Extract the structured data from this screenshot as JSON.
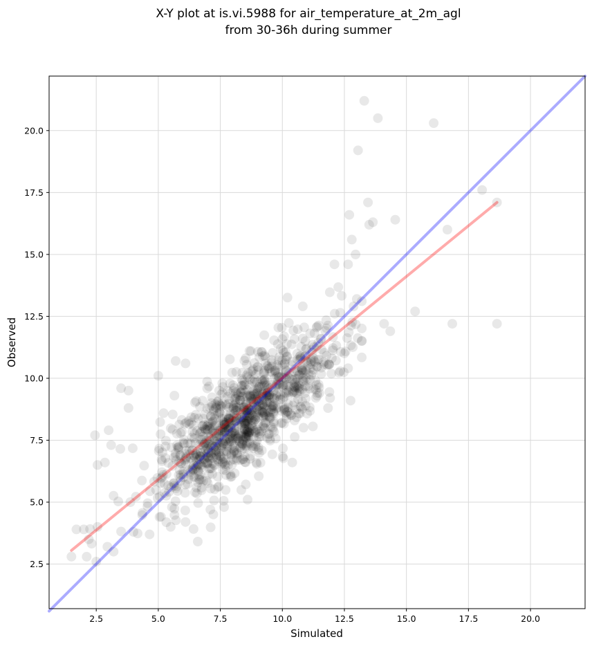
{
  "chart_data": {
    "type": "scatter",
    "title": [
      "X-Y plot at is.vi.5988 for air_temperature_at_2m_agl",
      "from 30-36h during summer"
    ],
    "xlabel": "Simulated",
    "ylabel": "Observed",
    "xlim": [
      0.6,
      22.2
    ],
    "ylim": [
      0.7,
      22.2
    ],
    "x_ticks": [
      2.5,
      5.0,
      7.5,
      10.0,
      12.5,
      15.0,
      17.5,
      20.0
    ],
    "y_ticks": [
      2.5,
      5.0,
      7.5,
      10.0,
      12.5,
      15.0,
      17.5,
      20.0
    ],
    "x_tick_labels": [
      "2.5",
      "5.0",
      "7.5",
      "10.0",
      "12.5",
      "15.0",
      "17.5",
      "20.0"
    ],
    "y_tick_labels": [
      "2.5",
      "5.0",
      "7.5",
      "10.0",
      "12.5",
      "15.0",
      "17.5",
      "20.0"
    ],
    "grid": true,
    "point_color": "#000000",
    "point_alpha": 0.09,
    "cloud": {
      "n_points": 1100,
      "x_center": 8.4,
      "x_spread": 1.9,
      "relationship": "y = 0.76*x + 1.95",
      "y_noise": 1.05
    },
    "series": [
      {
        "values": [
          [
            13.3,
            21.2
          ],
          [
            13.85,
            20.5
          ],
          [
            16.1,
            20.3
          ],
          [
            13.05,
            19.2
          ],
          [
            18.05,
            17.6
          ],
          [
            18.65,
            17.1
          ],
          [
            13.45,
            17.1
          ],
          [
            12.7,
            16.6
          ],
          [
            14.55,
            16.4
          ],
          [
            13.65,
            16.3
          ],
          [
            13.5,
            16.2
          ],
          [
            16.65,
            16.0
          ],
          [
            12.8,
            15.6
          ],
          [
            12.95,
            15.0
          ],
          [
            12.65,
            14.6
          ],
          [
            12.1,
            14.6
          ],
          [
            13.0,
            13.2
          ],
          [
            15.35,
            12.7
          ],
          [
            14.1,
            12.2
          ],
          [
            16.85,
            12.2
          ],
          [
            18.65,
            12.2
          ],
          [
            14.35,
            11.9
          ],
          [
            13.2,
            11.5
          ],
          [
            12.75,
            9.1
          ],
          [
            10.4,
            6.6
          ],
          [
            8.6,
            5.1
          ],
          [
            6.1,
            4.2
          ],
          [
            7.65,
            4.8
          ],
          [
            4.65,
            3.7
          ],
          [
            4.0,
            3.8
          ],
          [
            2.5,
            2.6
          ],
          [
            1.5,
            2.8
          ],
          [
            3.2,
            3.0
          ],
          [
            2.95,
            3.2
          ],
          [
            2.0,
            3.9
          ],
          [
            1.7,
            3.9
          ],
          [
            2.55,
            4.0
          ],
          [
            2.2,
            3.5
          ],
          [
            2.45,
            7.7
          ],
          [
            3.0,
            7.9
          ],
          [
            3.5,
            9.6
          ],
          [
            3.8,
            9.5
          ],
          [
            3.8,
            8.8
          ],
          [
            5.0,
            10.1
          ],
          [
            5.7,
            10.7
          ],
          [
            6.1,
            10.6
          ],
          [
            5.65,
            9.3
          ],
          [
            3.1,
            7.3
          ],
          [
            2.85,
            6.6
          ],
          [
            2.55,
            6.5
          ],
          [
            5.5,
            4.0
          ],
          [
            5.05,
            4.4
          ],
          [
            7.1,
            4.7
          ]
        ]
      }
    ],
    "reference_lines": [
      {
        "name": "1:1",
        "color": "#0000ff",
        "x": [
          0.6,
          22.2
        ],
        "y": [
          0.6,
          22.2
        ]
      },
      {
        "name": "fit",
        "color": "#ff0000",
        "x": [
          1.5,
          18.65
        ],
        "y": [
          3.05,
          17.1
        ]
      }
    ]
  }
}
